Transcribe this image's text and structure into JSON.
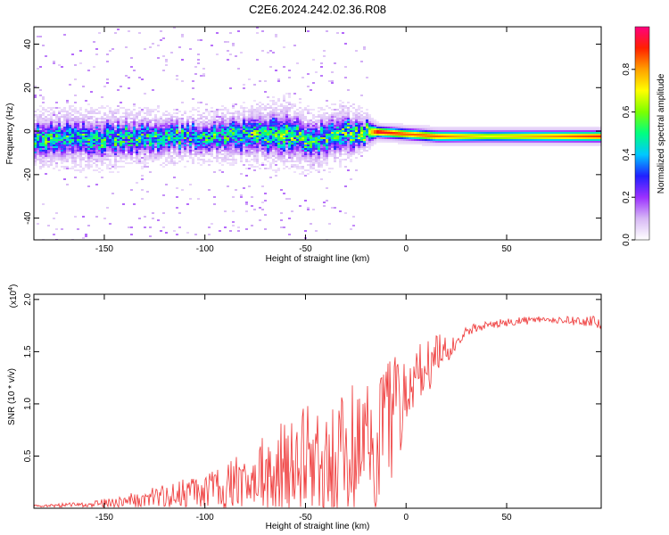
{
  "title": "C2E6.2024.242.02.36.R08",
  "chart_data": [
    {
      "type": "heatmap",
      "xlabel": "Height of straight line (km)",
      "ylabel": "Frequency (Hz)",
      "xlim": [
        -185,
        97
      ],
      "ylim": [
        -50,
        48
      ],
      "x_ticks": [
        -150,
        -100,
        -50,
        0,
        50
      ],
      "y_ticks": [
        -40,
        -20,
        0,
        20,
        40
      ],
      "colorbar": {
        "label": "Normalized spectral amplitude",
        "range": [
          0,
          1
        ],
        "ticks": [
          "0.0",
          "0.2",
          "0.4",
          "0.6",
          "0.8"
        ],
        "ticks_values": [
          0.0,
          0.2,
          0.4,
          0.6,
          0.8
        ],
        "colors": [
          "#ffffff",
          "#d7b8f5",
          "#9b30ff",
          "#2020ff",
          "#00c8ff",
          "#00ff80",
          "#7cff00",
          "#ffff00",
          "#ffa000",
          "#ff2000",
          "#ff007f"
        ]
      },
      "ridge": {
        "description_points": [
          {
            "x": -185,
            "freq": -3,
            "spread": 6,
            "amp": 0.45
          },
          {
            "x": -150,
            "freq": -3,
            "spread": 6,
            "amp": 0.45
          },
          {
            "x": -100,
            "freq": -2,
            "spread": 5,
            "amp": 0.45
          },
          {
            "x": -60,
            "freq": -1,
            "spread": 7,
            "amp": 0.5
          },
          {
            "x": -45,
            "freq": -4,
            "spread": 6,
            "amp": 0.45
          },
          {
            "x": -30,
            "freq": 0,
            "spread": 6,
            "amp": 0.5
          },
          {
            "x": -20,
            "freq": 0,
            "spread": 4,
            "amp": 0.6
          },
          {
            "x": -15,
            "freq": 0,
            "spread": 2,
            "amp": 0.95
          },
          {
            "x": 0,
            "freq": -1,
            "spread": 2,
            "amp": 0.85
          },
          {
            "x": 15,
            "freq": -2,
            "spread": 2,
            "amp": 0.85
          },
          {
            "x": 40,
            "freq": -2,
            "spread": 2,
            "amp": 0.7
          },
          {
            "x": 97,
            "freq": -2,
            "spread": 2,
            "amp": 0.9
          }
        ]
      }
    },
    {
      "type": "line",
      "xlabel": "Height of straight line (km)",
      "ylabel": "SNR (10 * v/v)",
      "y_multiplier": "(x10",
      "y_multiplier_exp": "4",
      "y_multiplier_close": ")",
      "xlim": [
        -185,
        97
      ],
      "ylim": [
        0,
        2.05
      ],
      "x_ticks": [
        -150,
        -100,
        -50,
        0,
        50
      ],
      "y_ticks": [
        0.5,
        1.0,
        1.5,
        2.0
      ],
      "y_tick_labels": [
        "0.5",
        "1.0",
        "1.5",
        "2.0"
      ],
      "color": "#ee3333",
      "series": [
        {
          "x": [
            -185,
            -170,
            -155,
            -140,
            -125,
            -110,
            -100,
            -90,
            -80,
            -70,
            -60,
            -50,
            -40,
            -30,
            -20,
            -15,
            -10,
            -5,
            0,
            5,
            10,
            15,
            20,
            25,
            30,
            40,
            50,
            60,
            70,
            80,
            90,
            97
          ],
          "y": [
            0.02,
            0.03,
            0.04,
            0.07,
            0.1,
            0.14,
            0.16,
            0.2,
            0.26,
            0.32,
            0.38,
            0.44,
            0.48,
            0.52,
            0.56,
            0.65,
            0.8,
            0.95,
            1.1,
            1.3,
            1.4,
            1.45,
            1.5,
            1.58,
            1.7,
            1.75,
            1.78,
            1.8,
            1.8,
            1.8,
            1.79,
            1.76
          ],
          "noise": [
            0.01,
            0.02,
            0.03,
            0.06,
            0.1,
            0.14,
            0.18,
            0.24,
            0.3,
            0.38,
            0.48,
            0.55,
            0.62,
            0.66,
            0.7,
            0.7,
            0.65,
            0.55,
            0.4,
            0.3,
            0.3,
            0.25,
            0.15,
            0.06,
            0.05,
            0.04,
            0.04,
            0.04,
            0.04,
            0.04,
            0.05,
            0.08
          ]
        }
      ]
    }
  ]
}
